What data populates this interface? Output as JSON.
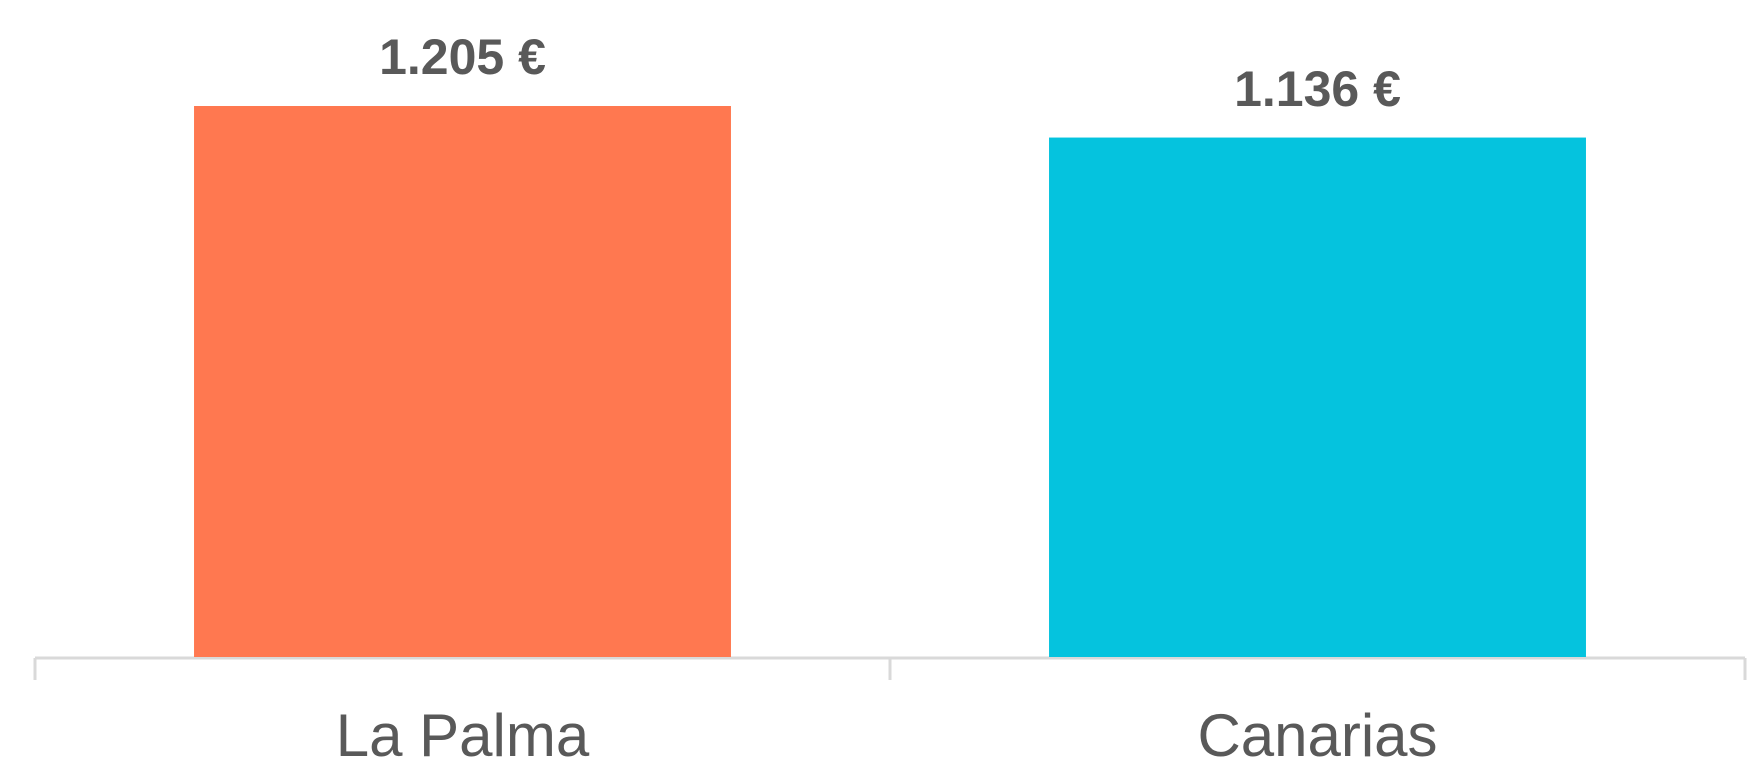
{
  "chart_data": {
    "type": "bar",
    "categories": [
      "La Palma",
      "Canarias"
    ],
    "values": [
      1205,
      1136
    ],
    "value_labels": [
      "1.205 €",
      "1.136 €"
    ],
    "colors": [
      "#ff7850",
      "#05c3de"
    ]
  }
}
